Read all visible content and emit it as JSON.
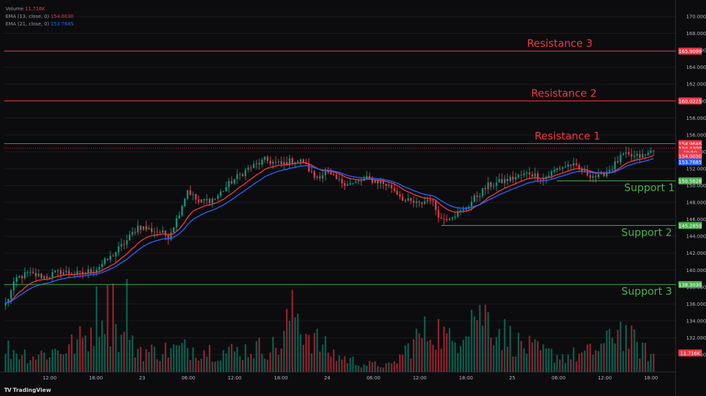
{
  "legend": {
    "volume_label": "Volume",
    "volume_value": "11.716K",
    "ema_fast_label": "EMA (13, close, 0)",
    "ema_fast_value": "154.0030",
    "ema_slow_label": "EMA (21, close, 0)",
    "ema_slow_value": "153.7685"
  },
  "branding": {
    "logo_mark": "TV",
    "name": "TradingView"
  },
  "colors": {
    "background": "#0c0c0e",
    "up": "#089981",
    "down": "#f23645",
    "resistance": "#f23645",
    "support": "#4caf50",
    "ema_fast": "#f23645",
    "ema_slow": "#2962ff",
    "axis_text": "#b2b5be"
  },
  "chart_data": {
    "type": "candlestick",
    "title": "",
    "price_axis": {
      "min": 128,
      "max": 172,
      "ticks": [
        "170.0000",
        "168.0000",
        "166.0000",
        "164.0000",
        "162.0000",
        "160.0000",
        "158.0000",
        "156.0000",
        "154.0000",
        "152.0000",
        "150.0000",
        "148.0000",
        "146.0000",
        "144.0000",
        "142.0000",
        "140.0000",
        "138.0000",
        "136.0000",
        "134.0000",
        "132.0000",
        "130.0000"
      ]
    },
    "time_axis": {
      "labels": [
        "12:00",
        "18:00",
        "23",
        "06:00",
        "12:00",
        "18:00",
        "24",
        "06:00",
        "12:00",
        "18:00",
        "25",
        "06:00",
        "12:00",
        "18:00"
      ]
    },
    "levels": [
      {
        "name": "Resistance 3",
        "value": 165.9099,
        "label": "165.9099",
        "kind": "resistance"
      },
      {
        "name": "Resistance 2",
        "value": 160.0225,
        "label": "160.0225",
        "kind": "resistance"
      },
      {
        "name": "Resistance 1",
        "value": 154.9646,
        "label": "154.9646",
        "kind": "resistance"
      },
      {
        "name": "Support 1",
        "value": 150.5628,
        "label": "150.5628",
        "kind": "support"
      },
      {
        "name": "Support 2",
        "value": 145.285,
        "label": "145.2850",
        "kind": "support"
      },
      {
        "name": "Support 3",
        "value": 138.303,
        "label": "138.3030",
        "kind": "support"
      }
    ],
    "price_badges": [
      {
        "label": "154.4300",
        "value": 154.43,
        "color": "#f23645"
      },
      {
        "label": "10:50",
        "value": 153.95,
        "color": "#f23645"
      },
      {
        "label": "154.0030",
        "value": 153.5,
        "color": "#f23645"
      },
      {
        "label": "153.7685",
        "value": 152.8,
        "color": "#2962ff"
      }
    ],
    "volume_badge": "11.716K",
    "close_anchors": [
      [
        0,
        136.0
      ],
      [
        4,
        139.0
      ],
      [
        8,
        139.6
      ],
      [
        14,
        139.2
      ],
      [
        20,
        139.8
      ],
      [
        27,
        139.5
      ],
      [
        33,
        140.2
      ],
      [
        38,
        141.5
      ],
      [
        44,
        143.5
      ],
      [
        48,
        145.2
      ],
      [
        52,
        144.8
      ],
      [
        56,
        144.5
      ],
      [
        59,
        144.0
      ],
      [
        62,
        146.0
      ],
      [
        66,
        149.5
      ],
      [
        70,
        148.0
      ],
      [
        76,
        148.5
      ],
      [
        82,
        150.5
      ],
      [
        88,
        152.0
      ],
      [
        94,
        153.0
      ],
      [
        100,
        152.5
      ],
      [
        104,
        153.0
      ],
      [
        108,
        152.8
      ],
      [
        112,
        151.0
      ],
      [
        116,
        151.5
      ],
      [
        121,
        150.5
      ],
      [
        126,
        150.2
      ],
      [
        131,
        150.8
      ],
      [
        136,
        150.4
      ],
      [
        140,
        149.8
      ],
      [
        145,
        148.2
      ],
      [
        150,
        147.8
      ],
      [
        154,
        148.5
      ],
      [
        158,
        146.0
      ],
      [
        162,
        146.5
      ],
      [
        166,
        147.0
      ],
      [
        170,
        148.5
      ],
      [
        175,
        150.0
      ],
      [
        180,
        150.5
      ],
      [
        185,
        151.0
      ],
      [
        190,
        151.5
      ],
      [
        195,
        150.8
      ],
      [
        200,
        152.0
      ],
      [
        205,
        152.5
      ],
      [
        210,
        151.5
      ],
      [
        215,
        151.0
      ],
      [
        220,
        152.2
      ],
      [
        224,
        153.6
      ],
      [
        228,
        153.4
      ],
      [
        232,
        153.5
      ],
      [
        235,
        154.4
      ]
    ],
    "volume_anchors": [
      [
        0,
        0.3
      ],
      [
        10,
        0.2
      ],
      [
        22,
        0.3
      ],
      [
        30,
        0.45
      ],
      [
        33,
        0.75
      ],
      [
        36,
        0.9
      ],
      [
        39,
        0.55
      ],
      [
        44,
        0.35
      ],
      [
        52,
        0.25
      ],
      [
        60,
        0.28
      ],
      [
        68,
        0.3
      ],
      [
        80,
        0.25
      ],
      [
        92,
        0.3
      ],
      [
        100,
        0.32
      ],
      [
        104,
        0.85
      ],
      [
        108,
        0.55
      ],
      [
        114,
        0.35
      ],
      [
        120,
        0.2
      ],
      [
        130,
        0.1
      ],
      [
        140,
        0.08
      ],
      [
        150,
        0.45
      ],
      [
        156,
        0.55
      ],
      [
        162,
        0.35
      ],
      [
        168,
        0.75
      ],
      [
        172,
        0.8
      ],
      [
        180,
        0.5
      ],
      [
        186,
        0.35
      ],
      [
        194,
        0.25
      ],
      [
        202,
        0.2
      ],
      [
        210,
        0.22
      ],
      [
        218,
        0.35
      ],
      [
        222,
        0.6
      ],
      [
        226,
        0.42
      ],
      [
        232,
        0.25
      ],
      [
        235,
        0.2
      ]
    ],
    "candle_count": 236,
    "volume_spikes": [
      [
        44,
        1.0
      ],
      [
        104,
        0.88
      ],
      [
        172,
        0.72
      ],
      [
        39,
        0.95
      ]
    ]
  }
}
